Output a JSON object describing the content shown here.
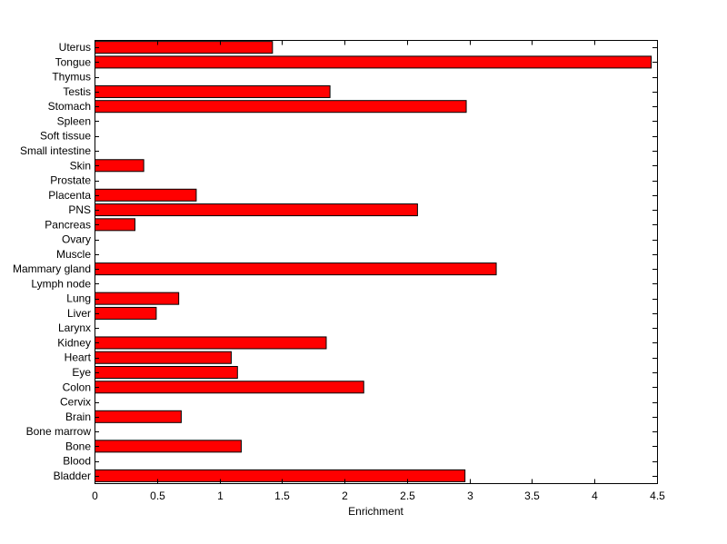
{
  "chart_data": {
    "type": "bar",
    "orientation": "horizontal",
    "xlabel": "Enrichment",
    "ylabel": "",
    "xlim": [
      0,
      4.5
    ],
    "xticks": [
      0,
      0.5,
      1,
      1.5,
      2,
      2.5,
      3,
      3.5,
      4,
      4.5
    ],
    "xtick_labels": [
      "0",
      "0.5",
      "1",
      "1.5",
      "2",
      "2.5",
      "3",
      "3.5",
      "4",
      "4.5"
    ],
    "grid": false,
    "legend": "none",
    "bar_color": "#ff0000",
    "bar_edge_color": "#000000",
    "categories": [
      "Uterus",
      "Tongue",
      "Thymus",
      "Testis",
      "Stomach",
      "Spleen",
      "Soft tissue",
      "Small intestine",
      "Skin",
      "Prostate",
      "Placenta",
      "PNS",
      "Pancreas",
      "Ovary",
      "Muscle",
      "Mammary gland",
      "Lymph node",
      "Lung",
      "Liver",
      "Larynx",
      "Kidney",
      "Heart",
      "Eye",
      "Colon",
      "Cervix",
      "Brain",
      "Bone marrow",
      "Bone",
      "Blood",
      "Bladder"
    ],
    "values": [
      1.42,
      4.45,
      0,
      1.88,
      2.97,
      0,
      0,
      0,
      0.39,
      0,
      0.81,
      2.58,
      0.32,
      0,
      0,
      3.21,
      0,
      0.67,
      0.49,
      0,
      1.85,
      1.09,
      1.14,
      2.15,
      0,
      0.69,
      0,
      1.17,
      0,
      2.96
    ]
  }
}
